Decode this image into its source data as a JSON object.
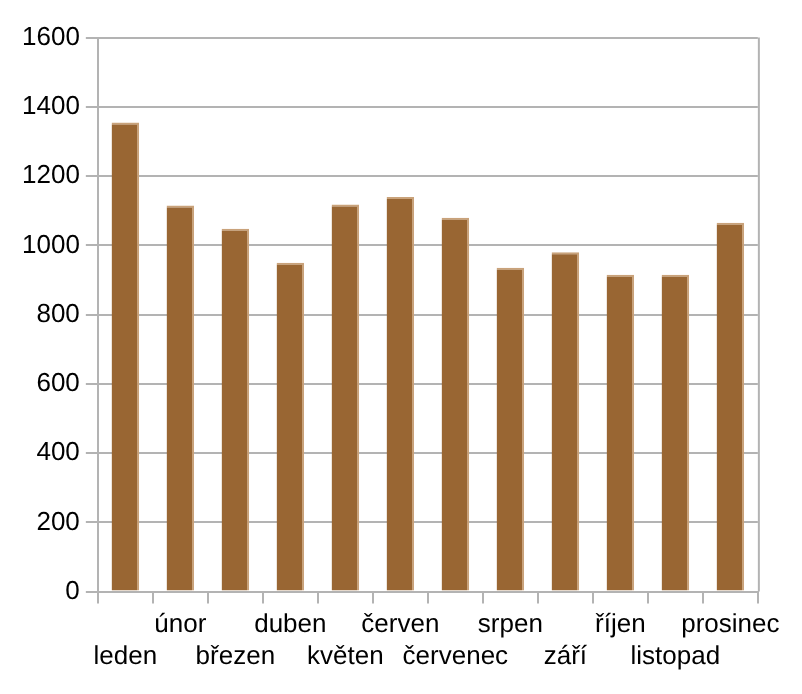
{
  "chart_data": {
    "type": "bar",
    "categories": [
      "leden",
      "únor",
      "březen",
      "duben",
      "květen",
      "červen",
      "červenec",
      "srpen",
      "září",
      "říjen",
      "listopad",
      "prosinec"
    ],
    "values": [
      1355,
      1115,
      1048,
      950,
      1118,
      1140,
      1080,
      935,
      980,
      915,
      915,
      1065
    ],
    "color": "#996633",
    "ylim": [
      0,
      1600
    ],
    "yticks": [
      0,
      200,
      400,
      600,
      800,
      1000,
      1200,
      1400,
      1600
    ],
    "grid": "y",
    "legend": false
  }
}
